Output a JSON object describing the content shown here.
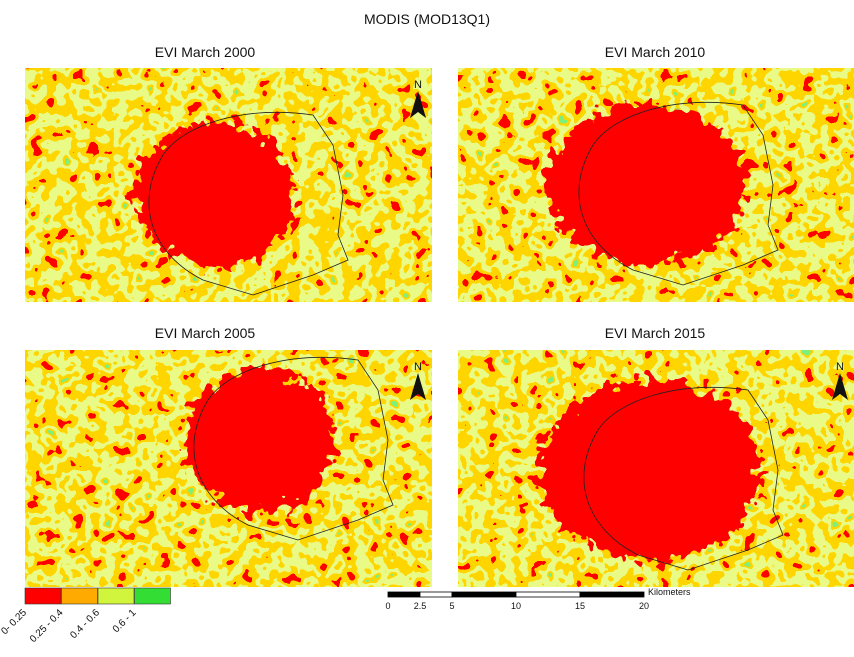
{
  "header": {
    "title": "MODIS (MOD13Q1)"
  },
  "panels": [
    {
      "title": "EVI March 2000",
      "north": "N"
    },
    {
      "title": "EVI March 2010"
    },
    {
      "title": "EVI March 2005",
      "north": "N"
    },
    {
      "title": "EVI March 2015",
      "north": "N"
    }
  ],
  "legend": [
    {
      "label": "0- 0.25",
      "color": "#ff0000"
    },
    {
      "label": "0.25 - 0.4",
      "color": "#ffaa00"
    },
    {
      "label": "0.4 - 0.6",
      "color": "#d1f53c"
    },
    {
      "label": "0.6 - 1",
      "color": "#33dd33"
    }
  ],
  "scale_bar": {
    "ticks": [
      "0",
      "2.5",
      "5",
      "10",
      "15",
      "20"
    ],
    "unit": "Kilometers"
  }
}
